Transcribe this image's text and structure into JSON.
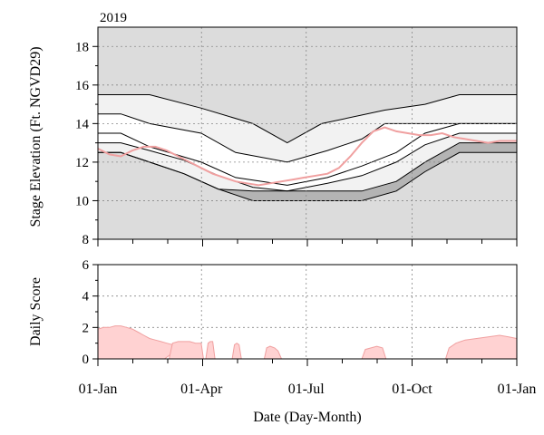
{
  "year_label": "2019",
  "x_axis": {
    "label": "Date (Day-Month)",
    "ticks": [
      "01-Jan",
      "01-Apr",
      "01-Jul",
      "01-Oct",
      "01-Jan"
    ]
  },
  "colors": {
    "background": "#dcdcdc",
    "envelope_light": "#f2f2f2",
    "envelope_dark": "#b4b4b4",
    "middle_band": "#ffffff",
    "stage_line": "#f0a0a0",
    "score_fill": "#ffd2d2",
    "score_line": "#f0a0a0"
  },
  "chart_data": [
    {
      "type": "area",
      "title": "",
      "ylabel": "Stage Elevation (Ft. NGVD29)",
      "xlabel": "",
      "x_unit": "day of year",
      "xlim": [
        0,
        365
      ],
      "ylim": [
        8,
        19
      ],
      "yticks": [
        8,
        10,
        12,
        14,
        16,
        18
      ],
      "grid": true,
      "envelope_lines": [
        {
          "x": [
            0,
            45,
            90,
            135,
            165,
            195,
            250,
            285,
            315,
            365
          ],
          "values": [
            15.5,
            15.5,
            14.8,
            14.0,
            13.0,
            14.0,
            14.7,
            15.0,
            15.5,
            15.5
          ]
        },
        {
          "x": [
            0,
            20,
            45,
            90,
            120,
            165,
            200,
            230,
            250,
            285,
            315,
            365
          ],
          "values": [
            14.5,
            14.5,
            14.0,
            13.5,
            12.5,
            12.0,
            12.6,
            13.2,
            14.0,
            14.0,
            14.0,
            14.0
          ]
        },
        {
          "x": [
            0,
            20,
            45,
            90,
            120,
            165,
            200,
            230,
            260,
            285,
            315,
            365
          ],
          "values": [
            13.5,
            13.5,
            12.8,
            12.0,
            11.2,
            10.8,
            11.2,
            11.8,
            12.5,
            13.5,
            14.0,
            14.0
          ]
        },
        {
          "x": [
            0,
            20,
            45,
            75,
            105,
            135,
            165,
            200,
            230,
            260,
            285,
            315,
            365
          ],
          "values": [
            13.0,
            13.0,
            12.6,
            12.1,
            11.3,
            10.7,
            10.5,
            10.9,
            11.3,
            12.0,
            12.9,
            13.5,
            13.5
          ]
        },
        {
          "x": [
            0,
            20,
            45,
            75,
            105,
            135,
            165,
            200,
            230,
            260,
            285,
            315,
            365
          ],
          "values": [
            12.5,
            12.5,
            12.0,
            11.4,
            10.6,
            10.5,
            10.5,
            10.5,
            10.5,
            11.0,
            12.0,
            13.0,
            13.0
          ]
        },
        {
          "x": [
            0,
            20,
            45,
            75,
            105,
            135,
            165,
            200,
            230,
            260,
            285,
            315,
            365
          ],
          "values": [
            12.5,
            12.5,
            12.0,
            11.4,
            10.6,
            10.0,
            10.0,
            10.0,
            10.0,
            10.5,
            11.5,
            12.5,
            12.5
          ]
        }
      ],
      "series": [
        {
          "x": [
            0,
            10,
            20,
            30,
            40,
            50,
            60,
            70,
            80,
            90,
            100,
            110,
            120,
            130,
            140,
            150,
            160,
            170,
            180,
            190,
            200,
            210,
            220,
            230,
            240,
            250,
            260,
            270,
            280,
            290,
            300,
            310,
            320,
            330,
            340,
            350,
            365
          ],
          "values": [
            12.7,
            12.4,
            12.3,
            12.6,
            12.8,
            12.8,
            12.6,
            12.3,
            12.0,
            11.7,
            11.4,
            11.2,
            11.0,
            10.9,
            10.8,
            10.9,
            11.0,
            11.1,
            11.2,
            11.3,
            11.4,
            11.7,
            12.3,
            13.0,
            13.6,
            13.8,
            13.6,
            13.5,
            13.4,
            13.4,
            13.5,
            13.3,
            13.2,
            13.1,
            13.0,
            13.1,
            13.1
          ]
        }
      ]
    },
    {
      "type": "area",
      "title": "",
      "ylabel": "Daily Score",
      "xlabel": "Date (Day-Month)",
      "x_unit": "day of year",
      "xlim": [
        0,
        365
      ],
      "ylim": [
        0,
        6
      ],
      "yticks": [
        0,
        2,
        4,
        6
      ],
      "grid": true,
      "series": [
        {
          "segments": [
            {
              "x": [
                0,
                5,
                10,
                15,
                20,
                25,
                30,
                35,
                40,
                45,
                50,
                55,
                60,
                65,
                70,
                75,
                58
              ],
              "values": [
                1.9,
                2.0,
                2.0,
                2.1,
                2.1,
                2.0,
                1.9,
                1.7,
                1.5,
                1.3,
                1.2,
                1.1,
                1.0,
                0.9,
                0.9,
                0.9,
                0
              ]
            },
            {
              "x": [
                62,
                65,
                70,
                75,
                80,
                85,
                88,
                90,
                92
              ],
              "values": [
                0.0,
                1.0,
                1.1,
                1.1,
                1.1,
                1.0,
                1.0,
                1.0,
                0.0
              ]
            },
            {
              "x": [
                94,
                96,
                98,
                100,
                102
              ],
              "values": [
                0.0,
                1.0,
                1.1,
                1.1,
                0.0
              ]
            },
            {
              "x": [
                117,
                119,
                121,
                123,
                125
              ],
              "values": [
                0.0,
                0.9,
                1.0,
                0.9,
                0.0
              ]
            },
            {
              "x": [
                145,
                147,
                150,
                154,
                157,
                160
              ],
              "values": [
                0.0,
                0.7,
                0.8,
                0.7,
                0.5,
                0.0
              ]
            },
            {
              "x": [
                230,
                233,
                238,
                243,
                248,
                251
              ],
              "values": [
                0.0,
                0.6,
                0.7,
                0.8,
                0.7,
                0.0
              ]
            },
            {
              "x": [
                303,
                306,
                312,
                320,
                330,
                340,
                350,
                358,
                365
              ],
              "values": [
                0.0,
                0.7,
                1.0,
                1.2,
                1.3,
                1.4,
                1.5,
                1.4,
                1.3
              ]
            }
          ]
        }
      ]
    }
  ]
}
